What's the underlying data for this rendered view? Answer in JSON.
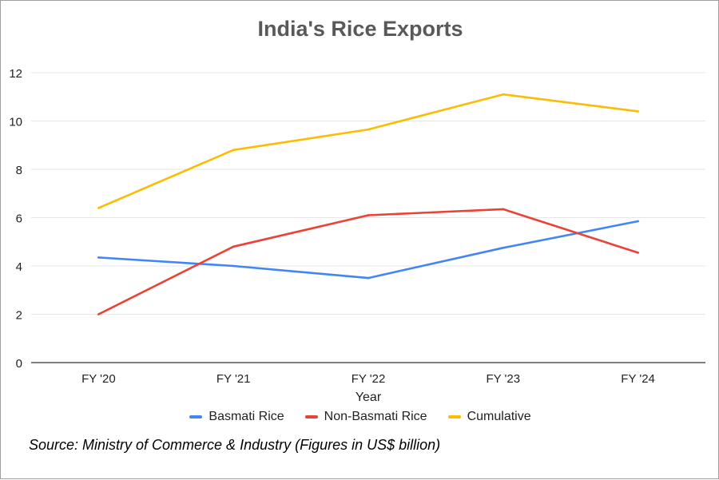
{
  "chart_data": {
    "type": "line",
    "title": "India's Rice Exports",
    "xlabel": "Year",
    "ylabel": "",
    "categories": [
      "FY '20",
      "FY '21",
      "FY '22",
      "FY '23",
      "FY '24"
    ],
    "ylim": [
      0,
      12
    ],
    "yticks": [
      "0",
      "2",
      "4",
      "6",
      "8",
      "10",
      "12"
    ],
    "grid": true,
    "legend_position": "bottom",
    "series": [
      {
        "name": "Basmati Rice",
        "color": "#4285f4",
        "values": [
          4.35,
          4.0,
          3.5,
          4.75,
          5.85
        ]
      },
      {
        "name": "Non-Basmati Rice",
        "color": "#ea4335",
        "values": [
          2.0,
          4.8,
          6.1,
          6.35,
          4.55
        ]
      },
      {
        "name": "Cumulative",
        "color": "#fbbc04",
        "values": [
          6.4,
          8.8,
          9.65,
          11.1,
          10.4
        ]
      }
    ]
  },
  "source_note": "Source: Ministry of Commerce & Industry (Figures in US$ billion)"
}
